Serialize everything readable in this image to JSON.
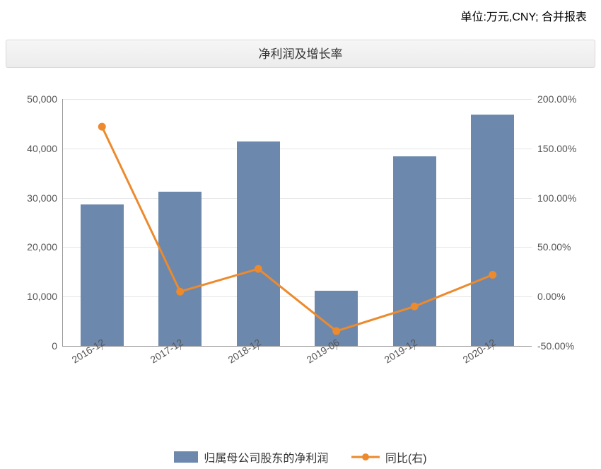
{
  "unit_label": "单位:万元,CNY; 合并报表",
  "chart": {
    "type": "bar+line",
    "title": "净利润及增长率",
    "background_color": "#ffffff",
    "grid_color": "#e6e6e6",
    "axis_color": "#999999",
    "categories": [
      "2016-12",
      "2017-12",
      "2018-12",
      "2019-06",
      "2019-12",
      "2020-12"
    ],
    "bar_series": {
      "name": "归属母公司股东的净利润",
      "color": "#6d88ad",
      "values": [
        28600,
        31200,
        41400,
        11200,
        38400,
        46800
      ],
      "bar_width_ratio": 0.55
    },
    "line_series": {
      "name": "同比(右)",
      "color": "#ec8a2d",
      "line_width": 3,
      "marker": "circle",
      "marker_size": 5,
      "values": [
        172,
        5,
        28,
        -35,
        -10,
        22
      ]
    },
    "y_left": {
      "min": 0,
      "max": 50000,
      "step": 10000,
      "tick_labels": [
        "0",
        "10,000",
        "20,000",
        "30,000",
        "40,000",
        "50,000"
      ],
      "fontsize": 14,
      "color": "#555555"
    },
    "y_right": {
      "min": -50,
      "max": 200,
      "step": 50,
      "tick_labels": [
        "-50.00%",
        "0.00%",
        "50.00%",
        "100.00%",
        "150.00%",
        "200.00%"
      ],
      "fontsize": 14,
      "color": "#555555"
    },
    "x_label_rotation_deg": -32,
    "title_fontsize": 17,
    "label_fontsize": 14,
    "legend_fontsize": 16
  }
}
